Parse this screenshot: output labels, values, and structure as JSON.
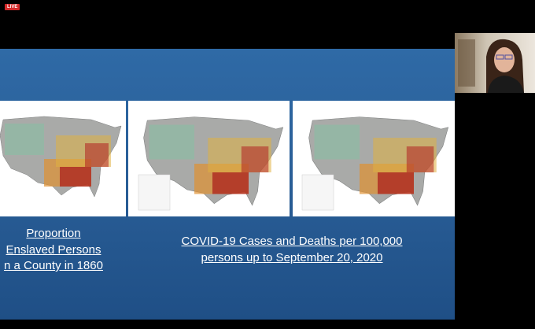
{
  "badge": "LIVE",
  "slide": {
    "left_caption": [
      "Proportion",
      "Enslaved Persons",
      "n a County in 1860"
    ],
    "right_caption": [
      "COVID-19 Cases and Deaths per 100,000",
      "persons up to September 20, 2020"
    ]
  }
}
